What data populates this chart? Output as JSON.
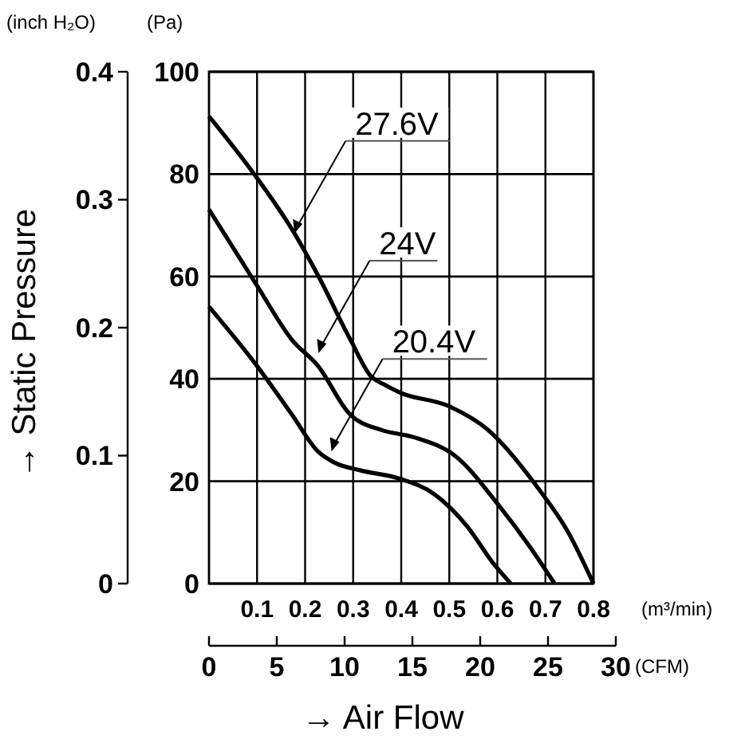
{
  "chart_data": {
    "type": "line",
    "xlabel": "→ Air Flow",
    "y2label": "→ Static Pressure",
    "x2label": "(CFM)",
    "xlim": [
      0,
      0.8
    ],
    "xticks": [
      0.1,
      0.2,
      0.3,
      0.4,
      0.5,
      0.6,
      0.7,
      0.8
    ],
    "ylim": [
      0,
      100
    ],
    "yticks": [
      0,
      20,
      40,
      60,
      80,
      100
    ],
    "y2lim": [
      0,
      0.4
    ],
    "y2ticks": [
      0,
      0.1,
      0.2,
      0.3,
      0.4
    ],
    "x2lim": [
      0,
      30
    ],
    "x2ticks": [
      0,
      5,
      10,
      15,
      20,
      25,
      30
    ],
    "grid": true,
    "line_style": "solid",
    "marker": "none",
    "series": [
      {
        "color": "#000000",
        "x": [
          0,
          0.094,
          0.178,
          0.228,
          0.294,
          0.338,
          0.362,
          0.398,
          0.498,
          0.581,
          0.686,
          0.747,
          0.8
        ],
        "values": [
          91.3,
          80,
          68.4,
          60,
          47.7,
          40.4,
          39,
          37.3,
          34.7,
          30,
          18.5,
          10.1,
          0
        ]
      },
      {
        "color": "#000000",
        "x": [
          0,
          0.1,
          0.172,
          0.227,
          0.293,
          0.359,
          0.426,
          0.514,
          0.602,
          0.669,
          0.719
        ],
        "values": [
          73.1,
          58.2,
          47.7,
          42.5,
          33.1,
          30,
          28.6,
          24.8,
          15.4,
          7,
          0
        ]
      },
      {
        "color": "#000000",
        "x": [
          0,
          0.1,
          0.172,
          0.227,
          0.26,
          0.316,
          0.393,
          0.47,
          0.537,
          0.592,
          0.628
        ],
        "values": [
          54.1,
          42.5,
          33.1,
          25.8,
          23.7,
          22.1,
          20.6,
          17.4,
          11.2,
          3.9,
          0
        ]
      }
    ],
    "annotations": [
      {
        "text": "27.6V",
        "x": 0.178,
        "y": 68.4
      },
      {
        "text": "24V",
        "x": 0.228,
        "y": 45
      },
      {
        "text": "20.4V",
        "x": 0.255,
        "y": 25.8
      },
      "(Pa)",
      "(m³/min)",
      "(inch H₂O)"
    ]
  }
}
